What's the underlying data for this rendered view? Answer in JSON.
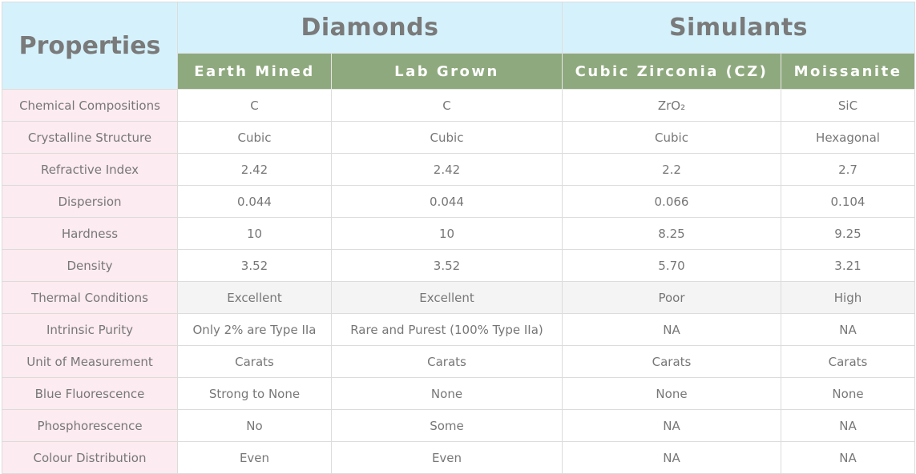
{
  "header": {
    "properties": "Properties",
    "groups": [
      "Diamonds",
      "Simulants"
    ],
    "columns": [
      "Earth Mined",
      "Lab Grown",
      "Cubic Zirconia (CZ)",
      "Moissanite"
    ]
  },
  "rows": [
    {
      "label": "Chemical Compositions",
      "values": [
        "C",
        "C",
        "ZrO₂",
        "SiC"
      ]
    },
    {
      "label": "Crystalline Structure",
      "values": [
        "Cubic",
        "Cubic",
        "Cubic",
        "Hexagonal"
      ]
    },
    {
      "label": "Refractive Index",
      "values": [
        "2.42",
        "2.42",
        "2.2",
        "2.7"
      ]
    },
    {
      "label": "Dispersion",
      "values": [
        "0.044",
        "0.044",
        "0.066",
        "0.104"
      ]
    },
    {
      "label": "Hardness",
      "values": [
        "10",
        "10",
        "8.25",
        "9.25"
      ]
    },
    {
      "label": "Density",
      "values": [
        "3.52",
        "3.52",
        "5.70",
        "3.21"
      ]
    },
    {
      "label": "Thermal Conditions",
      "values": [
        "Excellent",
        "Excellent",
        "Poor",
        "High"
      ]
    },
    {
      "label": "Intrinsic Purity",
      "values": [
        "Only 2% are Type IIa",
        "Rare and Purest (100% Type IIa)",
        "NA",
        "NA"
      ]
    },
    {
      "label": "Unit of Measurement",
      "values": [
        "Carats",
        "Carats",
        "Carats",
        "Carats"
      ]
    },
    {
      "label": "Blue Fluorescence",
      "values": [
        "Strong to None",
        "None",
        "None",
        "None"
      ]
    },
    {
      "label": "Phosphorescence",
      "values": [
        "No",
        "Some",
        "NA",
        "NA"
      ]
    },
    {
      "label": "Colour Distribution",
      "values": [
        "Even",
        "Even",
        "NA",
        "NA"
      ]
    }
  ],
  "colors": {
    "header_bg": "#d5f2fc",
    "subheader_bg": "#8fa97e",
    "label_bg": "#fcebf0",
    "highlight_row_bg": "#f4f4f4"
  }
}
